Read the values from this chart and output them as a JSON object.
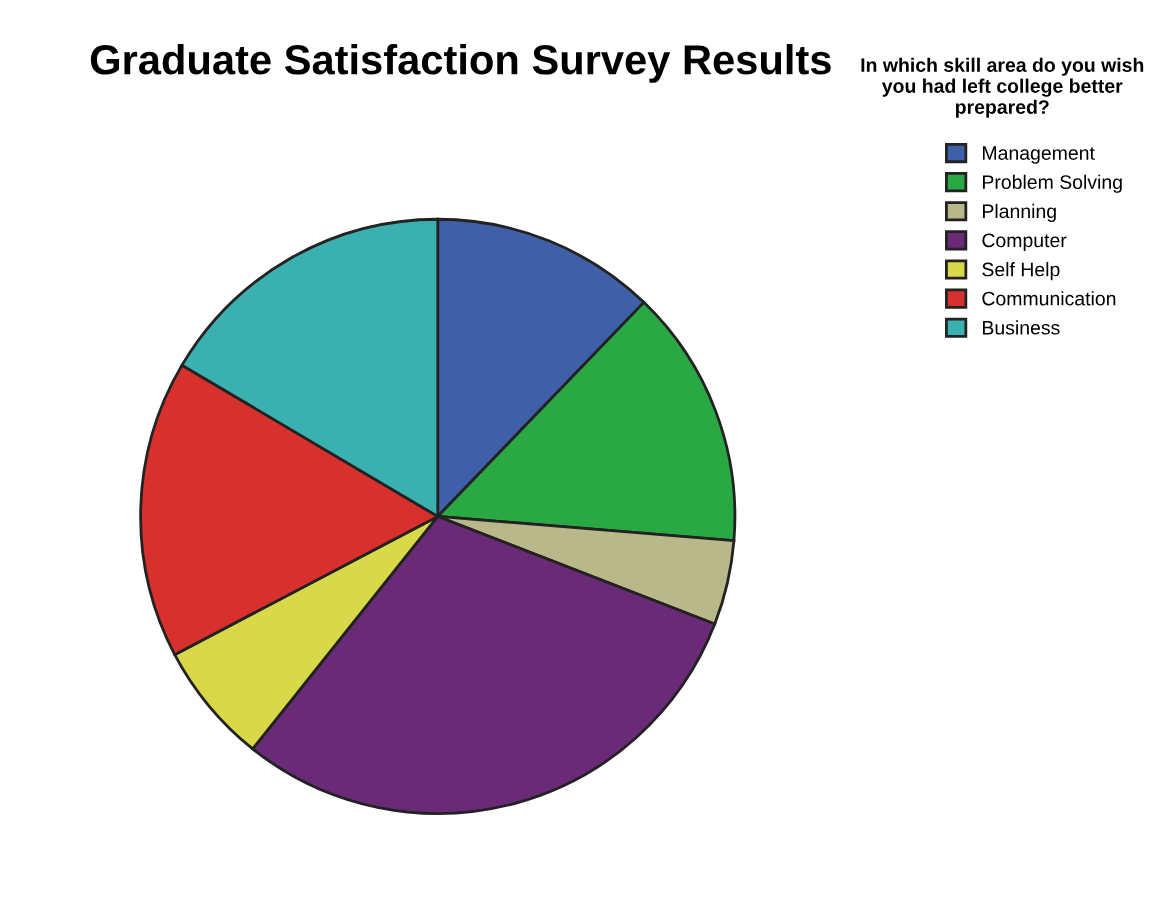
{
  "chart_data": {
    "type": "pie",
    "title": "Graduate Satisfaction Survey Results",
    "legend_title": "In which skill area do you wish you had left college better prepared?",
    "categories": [
      "Management",
      "Problem Solving",
      "Planning",
      "Computer",
      "Self Help",
      "Communication",
      "Business"
    ],
    "values": [
      12.2,
      14.1,
      4.6,
      29.8,
      6.6,
      16.2,
      16.5
    ],
    "colors": [
      "#3f5fa8",
      "#2aa844",
      "#b8b88a",
      "#6a2a78",
      "#d8d848",
      "#d8302c",
      "#3ab0b0"
    ],
    "legend": "top right"
  }
}
